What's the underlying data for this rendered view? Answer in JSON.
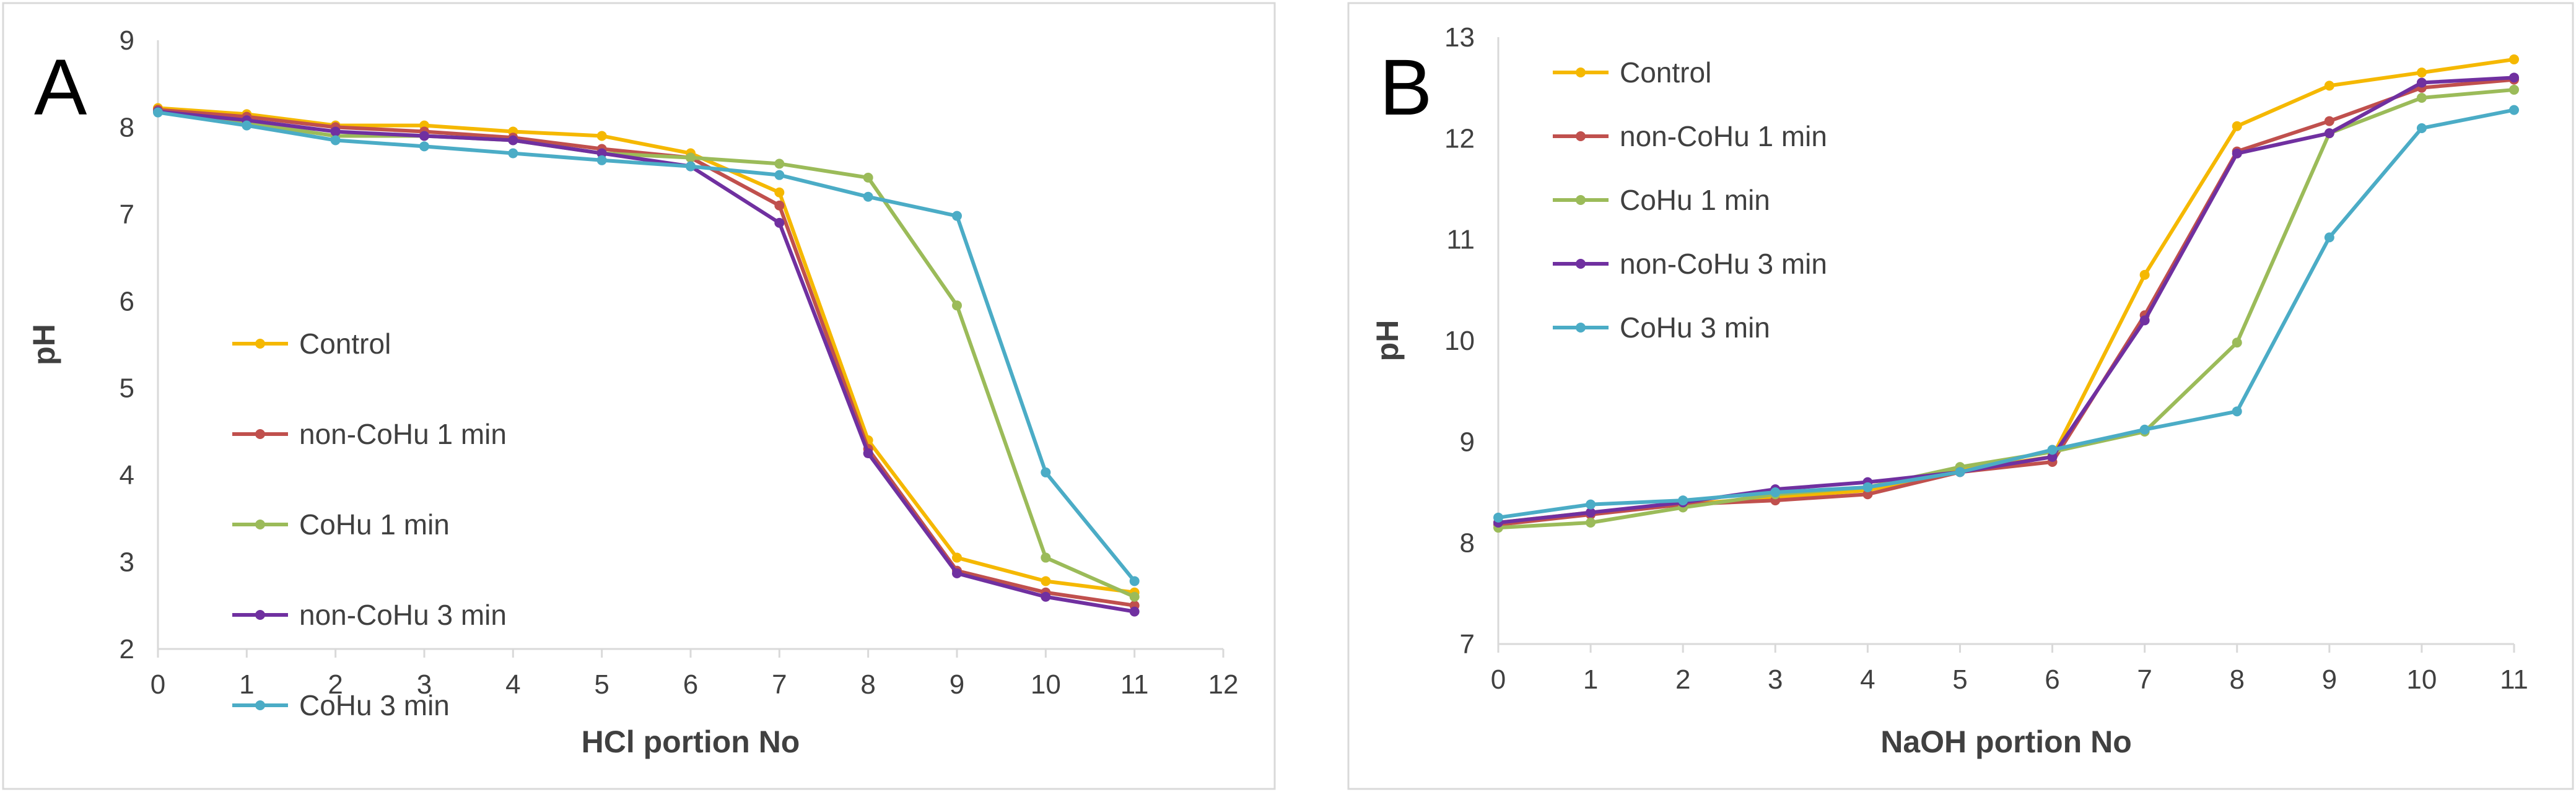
{
  "chart_data": [
    {
      "type": "line",
      "panel_label": "A",
      "title": "",
      "xlabel": "HCl portion No",
      "ylabel": "pH",
      "xlim": [
        0,
        12
      ],
      "ylim": [
        2,
        9
      ],
      "xticks": [
        "0",
        "1",
        "2",
        "3",
        "4",
        "5",
        "6",
        "7",
        "8",
        "9",
        "10",
        "11",
        "12"
      ],
      "yticks": [
        "2",
        "3",
        "4",
        "5",
        "6",
        "7",
        "8",
        "9"
      ],
      "grid": false,
      "legend_position": "lower-left",
      "x": [
        0,
        1,
        2,
        3,
        4,
        5,
        6,
        7,
        8,
        9,
        10,
        11
      ],
      "series": [
        {
          "name": "Control",
          "color": "#f5b800",
          "values": [
            8.22,
            8.15,
            8.02,
            8.02,
            7.95,
            7.9,
            7.7,
            7.25,
            4.4,
            3.05,
            2.78,
            2.65
          ]
        },
        {
          "name": "non-CoHu 1 min",
          "color": "#c0504d",
          "values": [
            8.2,
            8.12,
            8.0,
            7.95,
            7.88,
            7.75,
            7.65,
            7.1,
            4.3,
            2.9,
            2.65,
            2.5
          ]
        },
        {
          "name": "CoHu 1 min",
          "color": "#9bbb59",
          "values": [
            8.18,
            8.05,
            7.9,
            7.9,
            7.85,
            7.7,
            7.65,
            7.58,
            7.42,
            5.95,
            3.05,
            2.6
          ]
        },
        {
          "name": "non-CoHu 3 min",
          "color": "#7030a0",
          "values": [
            8.18,
            8.08,
            7.95,
            7.9,
            7.85,
            7.7,
            7.55,
            6.9,
            4.25,
            2.87,
            2.6,
            2.43
          ]
        },
        {
          "name": "CoHu 3 min",
          "color": "#4bacc6",
          "values": [
            8.17,
            8.02,
            7.85,
            7.78,
            7.7,
            7.62,
            7.55,
            7.45,
            7.2,
            6.98,
            4.03,
            2.78
          ]
        }
      ]
    },
    {
      "type": "line",
      "panel_label": "B",
      "title": "",
      "xlabel": "NaOH portion No",
      "ylabel": "pH",
      "xlim": [
        0,
        11
      ],
      "ylim": [
        7,
        13
      ],
      "xticks": [
        "0",
        "1",
        "2",
        "3",
        "4",
        "5",
        "6",
        "7",
        "8",
        "9",
        "10",
        "11"
      ],
      "yticks": [
        "7",
        "8",
        "9",
        "10",
        "11",
        "12",
        "13"
      ],
      "grid": false,
      "legend_position": "top-left",
      "x": [
        0,
        1,
        2,
        3,
        4,
        5,
        6,
        7,
        8,
        9,
        10,
        11
      ],
      "series": [
        {
          "name": "Control",
          "color": "#f5b800",
          "values": [
            8.2,
            8.3,
            8.38,
            8.45,
            8.52,
            8.72,
            8.85,
            10.65,
            12.12,
            12.52,
            12.65,
            12.78
          ]
        },
        {
          "name": "non-CoHu 1 min",
          "color": "#c0504d",
          "values": [
            8.18,
            8.28,
            8.38,
            8.42,
            8.48,
            8.7,
            8.8,
            10.25,
            11.87,
            12.17,
            12.5,
            12.58
          ]
        },
        {
          "name": "CoHu 1 min",
          "color": "#9bbb59",
          "values": [
            8.15,
            8.2,
            8.35,
            8.48,
            8.55,
            8.75,
            8.9,
            9.1,
            9.98,
            12.05,
            12.4,
            12.48
          ]
        },
        {
          "name": "non-CoHu 3 min",
          "color": "#7030a0",
          "values": [
            8.2,
            8.3,
            8.4,
            8.53,
            8.6,
            8.7,
            8.85,
            10.2,
            11.85,
            12.05,
            12.55,
            12.6
          ]
        },
        {
          "name": "CoHu 3 min",
          "color": "#4bacc6",
          "values": [
            8.25,
            8.38,
            8.42,
            8.5,
            8.55,
            8.7,
            8.92,
            9.12,
            9.3,
            11.02,
            12.1,
            12.28
          ]
        }
      ]
    }
  ]
}
